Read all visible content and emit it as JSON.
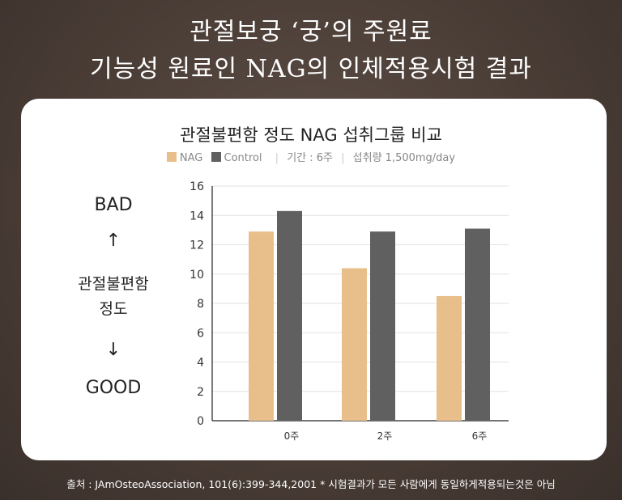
{
  "header": {
    "line1": "관절보궁 ‘궁’의 주원료",
    "line2": "기능성 원료인 NAG의 인체적용시험 결과"
  },
  "side": {
    "bad": "BAD",
    "up_arrow": "↑",
    "label_line1": "관절불편함",
    "label_line2": "정도",
    "down_arrow": "↓",
    "good": "GOOD"
  },
  "legend": {
    "nag": "NAG",
    "control": "Control",
    "period": "기간 : 6주",
    "dose": "섭취량 1,500mg/day"
  },
  "footer": "출처 : JAmOsteoAssociation, 101(6):399-344,2001 * 시험결과가 모든 사람에게 동일하게적용되는것은 아님",
  "colors": {
    "nag": "#e8bf8a",
    "control": "#606060"
  },
  "chart_data": {
    "type": "bar",
    "title": "관절불편함 정도 NAG 섭취그룹 비교",
    "categories": [
      "0주",
      "2주",
      "6주"
    ],
    "series": [
      {
        "name": "NAG",
        "values": [
          12.9,
          10.4,
          8.5
        ]
      },
      {
        "name": "Control",
        "values": [
          14.3,
          12.9,
          13.1
        ]
      }
    ],
    "yticks": [
      0,
      2,
      4,
      6,
      8,
      10,
      12,
      14,
      16
    ],
    "ylim": [
      0,
      16
    ],
    "grid": true,
    "legend_position": "top-center"
  }
}
